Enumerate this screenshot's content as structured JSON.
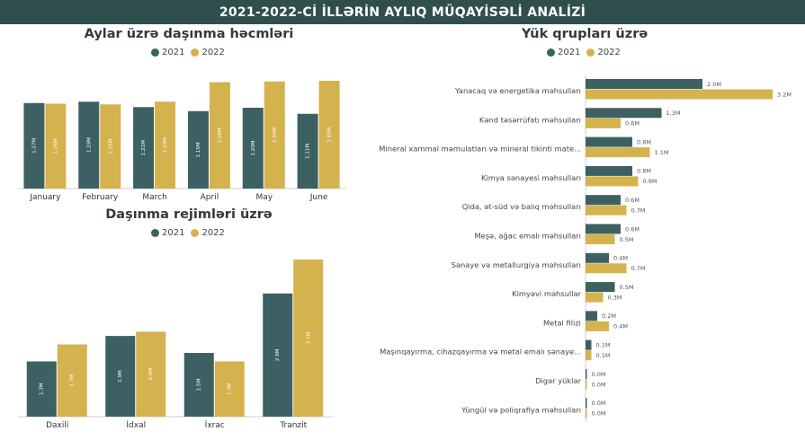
{
  "header": {
    "title": "2021-2022-Cİ İLLƏRİN AYLIQ MÜQAYİSƏLİ ANALİZİ"
  },
  "colors": {
    "y2021": "#3d6163",
    "y2022": "#d4b24d",
    "header_bg": "#2f4f4c"
  },
  "chart_data": [
    {
      "id": "monthly",
      "type": "bar",
      "title": "Aylar üzrə daşınma həcmləri",
      "legend": [
        "2021",
        "2022"
      ],
      "legend_position": "top-center",
      "categories": [
        "January",
        "February",
        "March",
        "April",
        "May",
        "June"
      ],
      "series": [
        {
          "name": "2021",
          "values": [
            1.27,
            1.29,
            1.21,
            1.15,
            1.2,
            1.11
          ],
          "labels": [
            "1.27M",
            "1.29M",
            "1.21M",
            "1.15M",
            "1.20M",
            "1.11M"
          ]
        },
        {
          "name": "2022",
          "values": [
            1.26,
            1.25,
            1.29,
            1.58,
            1.59,
            1.6
          ],
          "labels": [
            "1.26M",
            "1.25M",
            "1.29M",
            "1.58M",
            "1.59M",
            "1.60M"
          ]
        }
      ],
      "ylim": [
        0,
        1.6
      ],
      "grid": false
    },
    {
      "id": "regimes",
      "type": "bar",
      "title": "Daşınma rejimləri üzrə",
      "legend": [
        "2021",
        "2022"
      ],
      "legend_position": "top-center",
      "categories": [
        "Daxili",
        "İdxal",
        "İxrac",
        "Tranzit"
      ],
      "series": [
        {
          "name": "2021",
          "values": [
            1.3,
            1.9,
            1.5,
            2.9
          ],
          "labels": [
            "1.3M",
            "1.9M",
            "1.5M",
            "2.9M"
          ]
        },
        {
          "name": "2022",
          "values": [
            1.7,
            2.0,
            1.3,
            3.7
          ],
          "labels": [
            "1.7M",
            "2.0M",
            "1.3M",
            "3.7M"
          ]
        }
      ],
      "ylim": [
        0,
        3.7
      ],
      "grid": false
    },
    {
      "id": "groups",
      "type": "bar",
      "orientation": "horizontal",
      "title": "Yük qrupları üzrə",
      "legend": [
        "2021",
        "2022"
      ],
      "legend_position": "top-center",
      "categories": [
        "Yanacaq və energetika məhsulları",
        "Kənd təsərrüfatı məhsulları",
        "Mineral xammal məmulatları və mineral tikinti mate...",
        "Kimya sənayesi məhsulları",
        "Qida, ət-süd və balıq məhsulları",
        "Meşə, ağac emalı məhsulları",
        "Sənaye və metallurgiya məhsulları",
        "Kimyəvi məhsullar",
        "Metal filizi",
        "Maşınqayırma, cihazqayırma və metal emalı sənaye...",
        "Digər yüklər",
        "Yüngül və poliqrafiya məhsulları"
      ],
      "series": [
        {
          "name": "2021",
          "values": [
            2.0,
            1.3,
            0.8,
            0.8,
            0.6,
            0.6,
            0.4,
            0.5,
            0.2,
            0.1,
            0.0,
            0.0
          ],
          "labels": [
            "2.0M",
            "1.3M",
            "0.8M",
            "0.8M",
            "0.6M",
            "0.6M",
            "0.4M",
            "0.5M",
            "0.2M",
            "0.1M",
            "0.0M",
            "0.0M"
          ]
        },
        {
          "name": "2022",
          "values": [
            3.2,
            0.6,
            1.1,
            0.9,
            0.7,
            0.5,
            0.7,
            0.3,
            0.4,
            0.1,
            0.0,
            0.0
          ],
          "labels": [
            "3.2M",
            "0.6M",
            "1.1M",
            "0.9M",
            "0.7M",
            "0.5M",
            "0.7M",
            "0.3M",
            "0.4M",
            "0.1M",
            "0.0M",
            "0.0M"
          ]
        }
      ],
      "xlim": [
        0,
        3.2
      ],
      "grid": false
    }
  ]
}
